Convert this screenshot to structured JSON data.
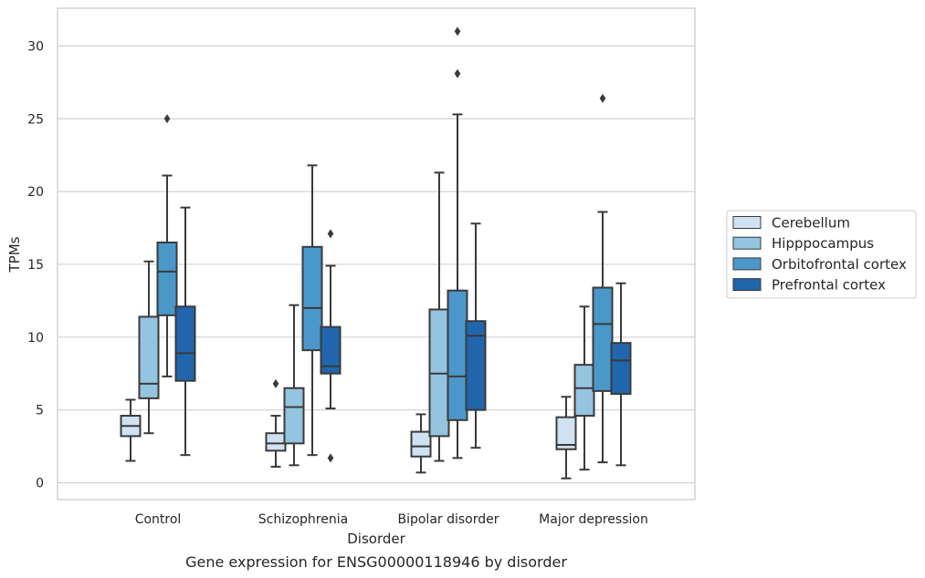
{
  "caption": "Gene expression for ENSG00000118946 by disorder",
  "chart_data": {
    "type": "box",
    "xlabel": "Disorder",
    "ylabel": "TPMs",
    "ylim": [
      -1.2,
      32.5
    ],
    "yticks": [
      0,
      5,
      10,
      15,
      20,
      25,
      30
    ],
    "grid": "horizontal",
    "legend_position": "right",
    "categories": [
      "Control",
      "Schizophrenia",
      "Bipolar disorder",
      "Major depression"
    ],
    "series": [
      {
        "name": "Cerebellum",
        "color": "#d0e1f2",
        "boxes": [
          {
            "whisker_low": 1.5,
            "q1": 3.2,
            "median": 3.9,
            "q3": 4.6,
            "whisker_high": 5.7,
            "outliers": []
          },
          {
            "whisker_low": 1.1,
            "q1": 2.2,
            "median": 2.7,
            "q3": 3.4,
            "whisker_high": 4.6,
            "outliers": [
              6.8
            ]
          },
          {
            "whisker_low": 0.7,
            "q1": 1.8,
            "median": 2.5,
            "q3": 3.5,
            "whisker_high": 4.7,
            "outliers": []
          },
          {
            "whisker_low": 0.3,
            "q1": 2.3,
            "median": 2.6,
            "q3": 4.5,
            "whisker_high": 5.9,
            "outliers": []
          }
        ]
      },
      {
        "name": "Hipppocampus",
        "color": "#94c4df",
        "boxes": [
          {
            "whisker_low": 3.4,
            "q1": 5.8,
            "median": 6.8,
            "q3": 11.4,
            "whisker_high": 15.2,
            "outliers": []
          },
          {
            "whisker_low": 1.2,
            "q1": 2.7,
            "median": 5.2,
            "q3": 6.5,
            "whisker_high": 12.2,
            "outliers": []
          },
          {
            "whisker_low": 1.5,
            "q1": 3.2,
            "median": 7.5,
            "q3": 11.9,
            "whisker_high": 21.3,
            "outliers": []
          },
          {
            "whisker_low": 0.9,
            "q1": 4.6,
            "median": 6.5,
            "q3": 8.1,
            "whisker_high": 12.1,
            "outliers": []
          }
        ]
      },
      {
        "name": "Orbitofrontal cortex",
        "color": "#4a98c9",
        "boxes": [
          {
            "whisker_low": 7.3,
            "q1": 11.5,
            "median": 14.5,
            "q3": 16.5,
            "whisker_high": 21.1,
            "outliers": [
              25.0
            ]
          },
          {
            "whisker_low": 1.9,
            "q1": 9.1,
            "median": 12.0,
            "q3": 16.2,
            "whisker_high": 21.8,
            "outliers": []
          },
          {
            "whisker_low": 1.7,
            "q1": 4.3,
            "median": 7.3,
            "q3": 13.2,
            "whisker_high": 25.3,
            "outliers": [
              28.1,
              31.0
            ]
          },
          {
            "whisker_low": 1.4,
            "q1": 6.3,
            "median": 10.9,
            "q3": 13.4,
            "whisker_high": 18.6,
            "outliers": [
              26.4
            ]
          }
        ]
      },
      {
        "name": "Prefrontal cortex",
        "color": "#2166ac",
        "boxes": [
          {
            "whisker_low": 1.9,
            "q1": 7.0,
            "median": 8.9,
            "q3": 12.1,
            "whisker_high": 18.9,
            "outliers": []
          },
          {
            "whisker_low": 5.1,
            "q1": 7.5,
            "median": 8.0,
            "q3": 10.7,
            "whisker_high": 14.9,
            "outliers": [
              1.7,
              17.1
            ]
          },
          {
            "whisker_low": 2.4,
            "q1": 5.0,
            "median": 10.1,
            "q3": 11.1,
            "whisker_high": 17.8,
            "outliers": []
          },
          {
            "whisker_low": 1.2,
            "q1": 6.1,
            "median": 8.4,
            "q3": 9.6,
            "whisker_high": 13.7,
            "outliers": []
          }
        ]
      }
    ]
  }
}
